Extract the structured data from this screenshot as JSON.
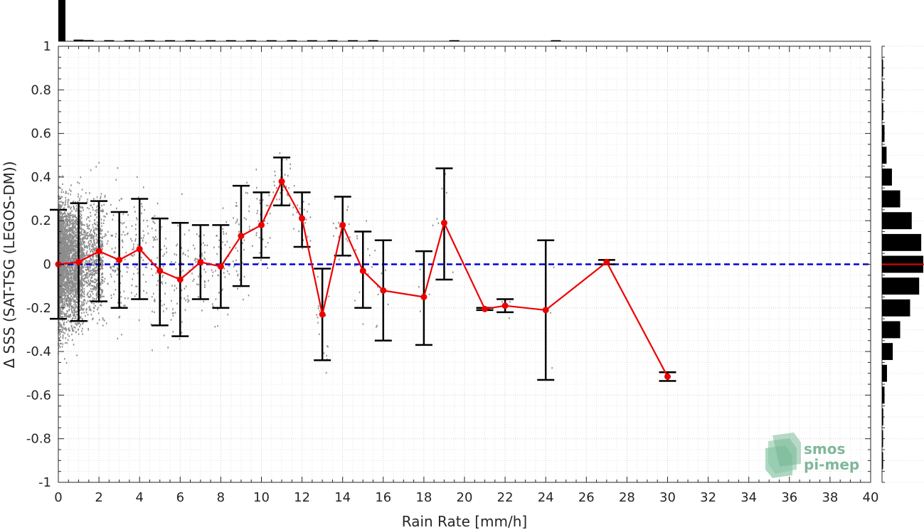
{
  "chart_data": {
    "type": "scatter",
    "xlabel": "Rain Rate [mm/h]",
    "ylabel": "Δ SSS (SAT-TSG (LEGOS-DM))",
    "xlim": [
      0,
      40
    ],
    "ylim": [
      -1,
      1
    ],
    "xticks": [
      "0",
      "2",
      "4",
      "6",
      "8",
      "10",
      "12",
      "14",
      "16",
      "18",
      "20",
      "22",
      "24",
      "26",
      "28",
      "30",
      "32",
      "34",
      "36",
      "38",
      "40"
    ],
    "yticks": [
      "-1",
      "-0.8",
      "-0.6",
      "-0.4",
      "-0.2",
      "0",
      "0.2",
      "0.4",
      "0.6",
      "0.8",
      "1"
    ],
    "grid": true,
    "zero_line": {
      "y": 0,
      "color": "#0000dd",
      "style": "dashed"
    },
    "mean_series": {
      "color": "#ee0000",
      "x": [
        0,
        1,
        2,
        3,
        4,
        5,
        6,
        7,
        8,
        9,
        10,
        11,
        12,
        13,
        14,
        15,
        16,
        18,
        19,
        21,
        22,
        24,
        27,
        30
      ],
      "y": [
        0.0,
        0.01,
        0.06,
        0.02,
        0.07,
        -0.03,
        -0.07,
        0.01,
        -0.01,
        0.13,
        0.18,
        0.38,
        0.21,
        -0.23,
        0.18,
        -0.03,
        -0.12,
        -0.15,
        0.19,
        -0.205,
        -0.19,
        -0.21,
        0.01,
        -0.515
      ],
      "err_lo": [
        -0.25,
        -0.26,
        -0.17,
        -0.2,
        -0.16,
        -0.28,
        -0.33,
        -0.16,
        -0.2,
        -0.1,
        0.03,
        0.27,
        0.08,
        -0.44,
        0.04,
        -0.2,
        -0.35,
        -0.37,
        -0.07,
        -0.21,
        -0.22,
        -0.53,
        0.0,
        -0.535
      ],
      "err_hi": [
        0.25,
        0.28,
        0.29,
        0.24,
        0.3,
        0.21,
        0.19,
        0.18,
        0.18,
        0.36,
        0.33,
        0.49,
        0.33,
        -0.02,
        0.31,
        0.15,
        0.11,
        0.06,
        0.44,
        -0.2,
        -0.16,
        0.11,
        0.02,
        -0.495
      ]
    },
    "scatter_color": "#8c8c8c",
    "top_histogram": {
      "x": [
        0.25,
        1,
        1.5,
        2.5,
        3.5,
        4.5,
        5.5,
        6.5,
        7.5,
        8.5,
        9.5,
        10.5,
        11.5,
        12.5,
        13.5,
        14.5,
        15.5,
        19.5,
        24.5
      ],
      "counts": [
        1.0,
        0.04,
        0.03,
        0.02,
        0.02,
        0.02,
        0.015,
        0.015,
        0.015,
        0.01,
        0.01,
        0.01,
        0.01,
        0.008,
        0.008,
        0.008,
        0.006,
        0.006,
        0.006
      ]
    },
    "right_histogram": {
      "y": [
        -0.9,
        -0.8,
        -0.7,
        -0.6,
        -0.5,
        -0.4,
        -0.3,
        -0.2,
        -0.1,
        0.0,
        0.1,
        0.2,
        0.3,
        0.4,
        0.5,
        0.6,
        0.7,
        0.8,
        0.9
      ],
      "counts": [
        0.01,
        0.02,
        0.03,
        0.06,
        0.12,
        0.26,
        0.44,
        0.68,
        0.9,
        1.0,
        0.95,
        0.72,
        0.44,
        0.24,
        0.11,
        0.06,
        0.03,
        0.02,
        0.01
      ],
      "zero_marker_color": "#ee0000"
    }
  },
  "logo": {
    "line1": "smos",
    "line2": "pi-mep",
    "color": "#7fb89a"
  }
}
